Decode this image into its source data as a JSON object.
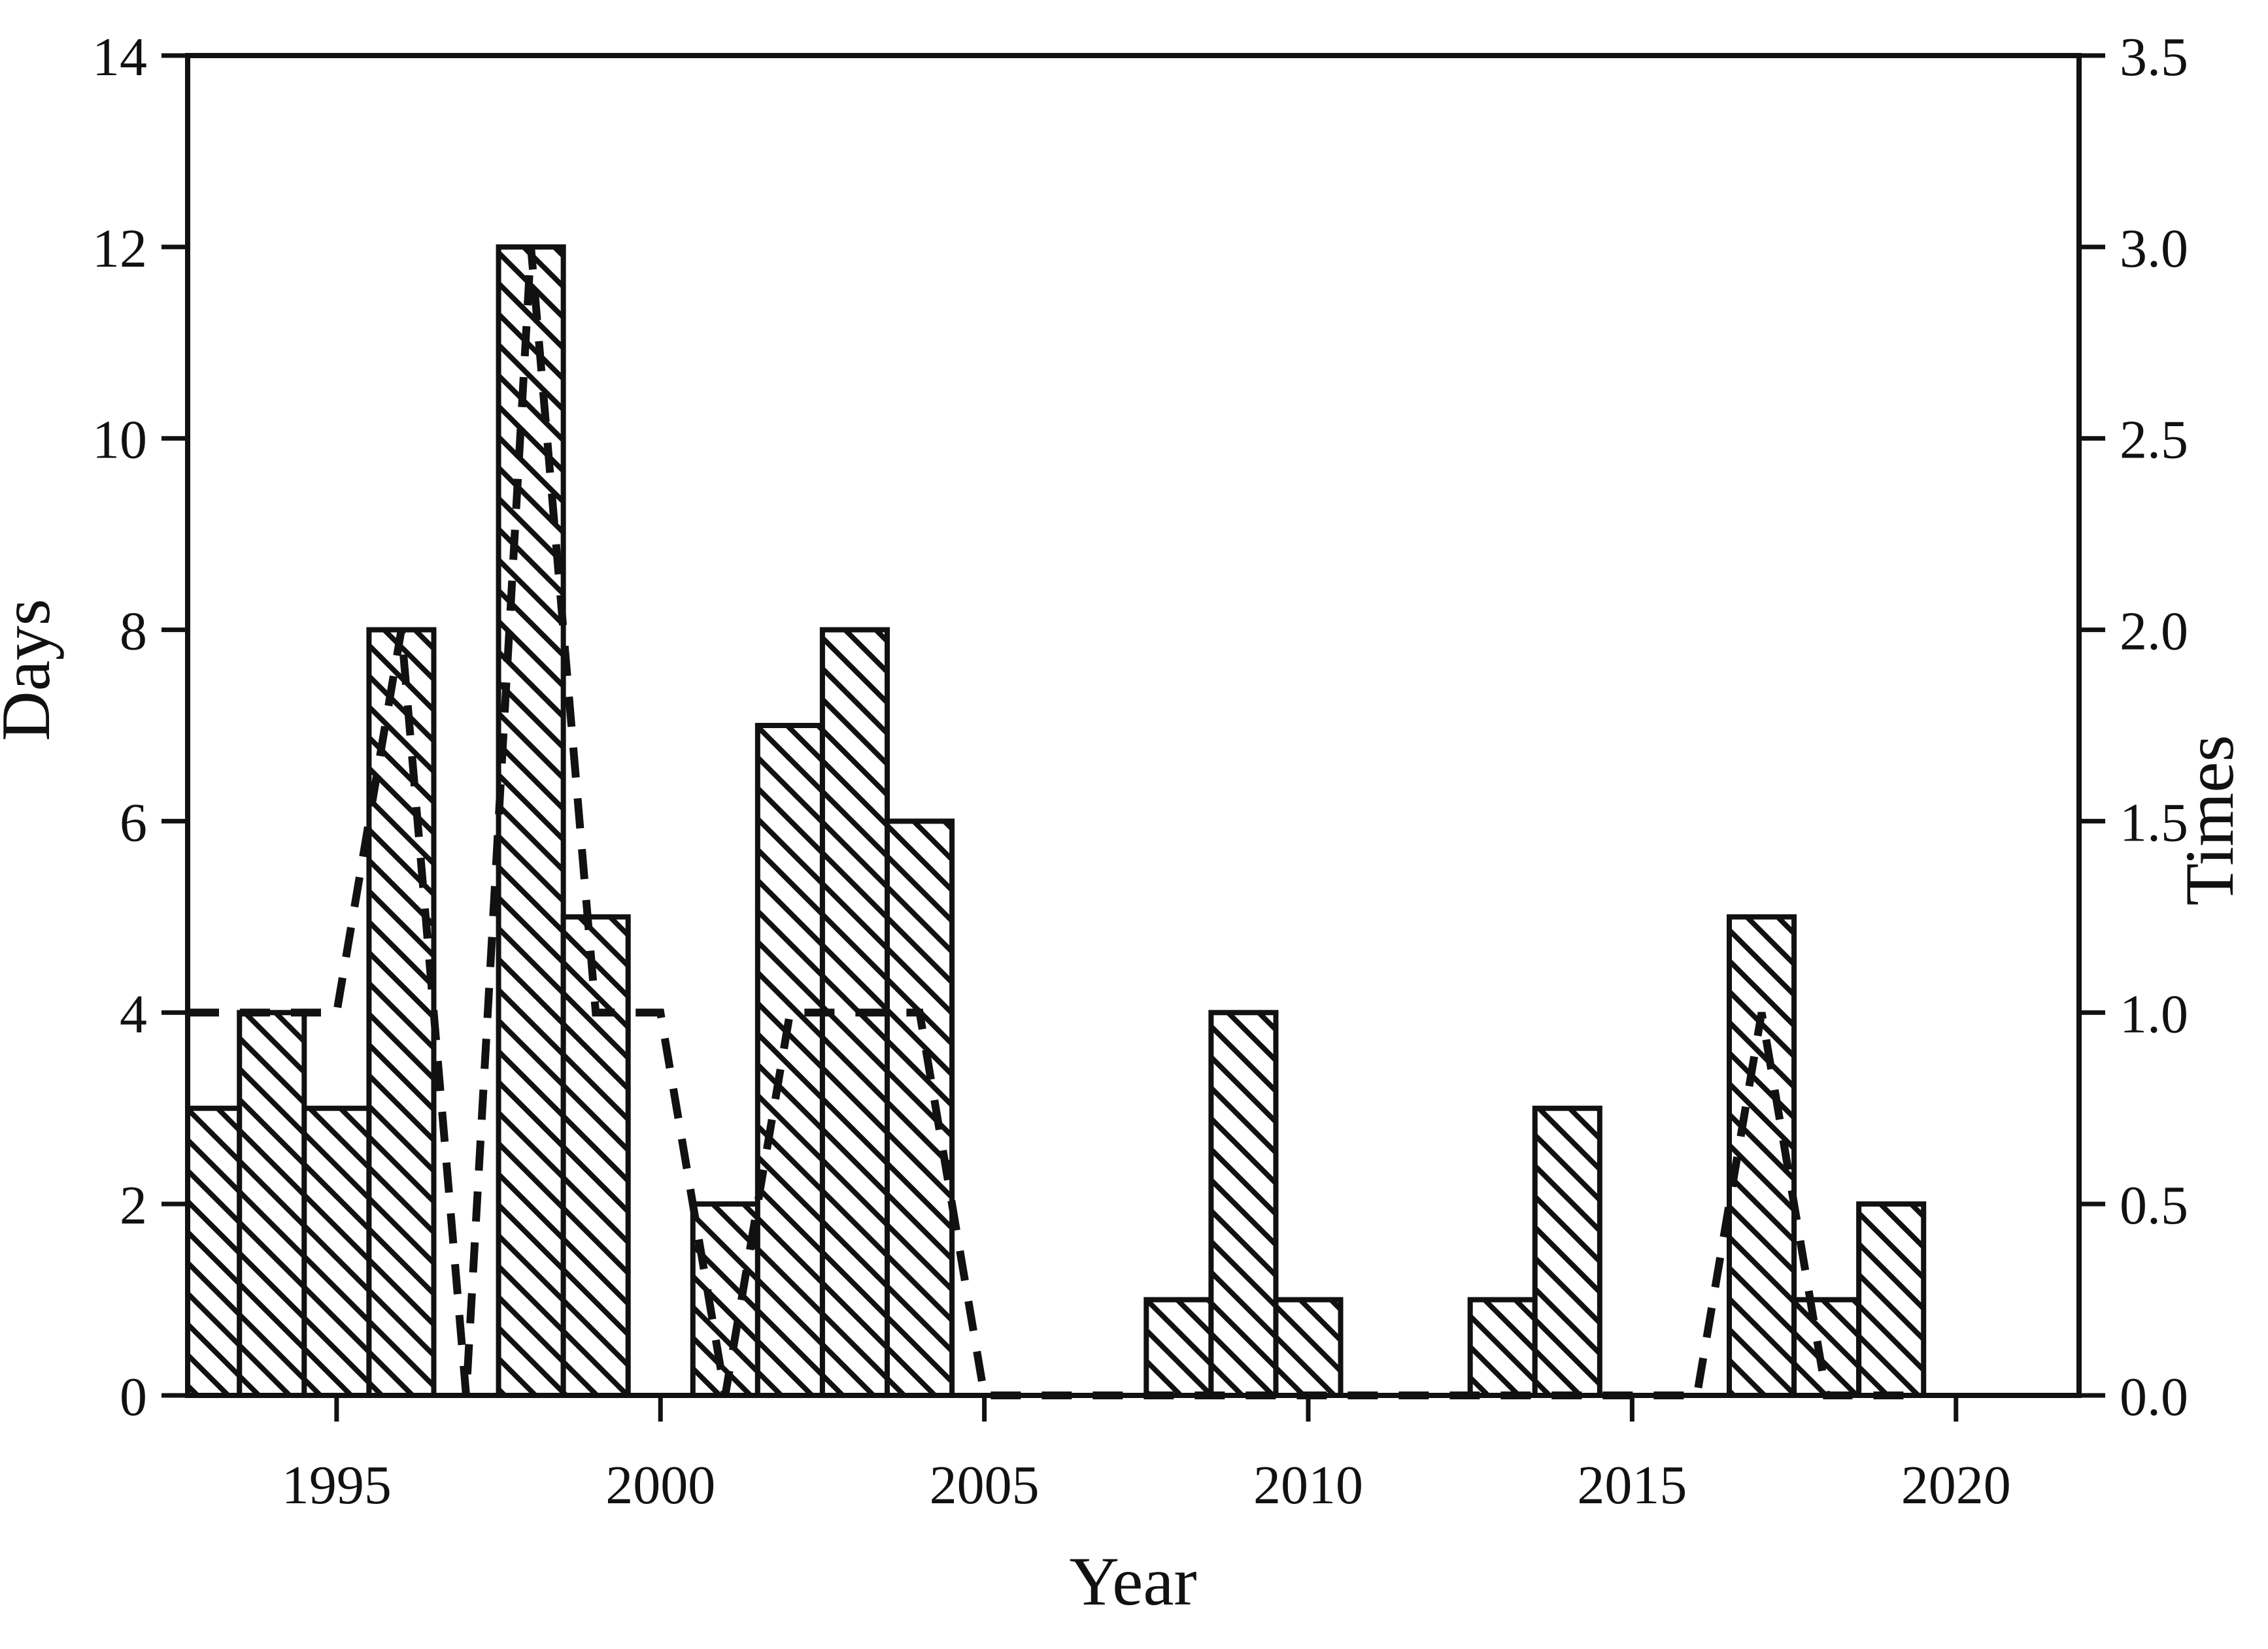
{
  "figure": {
    "xlabel": "Year",
    "ylabel_left": "Days",
    "ylabel_right": "Times",
    "background_color": "#ffffff",
    "ink_color": "#111111"
  },
  "chart_data": {
    "type": "bar",
    "title": "",
    "xlabel": "Year",
    "ylabel_left": "Days",
    "ylabel_right": "Times",
    "grid": false,
    "legend": "none",
    "frame": "full-box",
    "x_range": [
      1992.7,
      2021.9
    ],
    "x_ticks": [
      1995,
      2000,
      2005,
      2010,
      2015,
      2020
    ],
    "y_left": {
      "label": "Days",
      "min": 0,
      "max": 14,
      "ticks": [
        0,
        2,
        4,
        6,
        8,
        10,
        12,
        14
      ]
    },
    "y_right": {
      "label": "Times",
      "min": 0,
      "max": 3.5,
      "tick_labels": [
        "0.0",
        "0.5",
        "1.0",
        "1.5",
        "2.0",
        "2.5",
        "3.0",
        "3.5"
      ]
    },
    "series": [
      {
        "name": "Days",
        "type": "bar",
        "axis": "left",
        "bar_style": "white fill, black border, backslash hatch",
        "categories": [
          1993,
          1994,
          1995,
          1996,
          1997,
          1998,
          1999,
          2000,
          2001,
          2002,
          2003,
          2004,
          2005,
          2006,
          2007,
          2008,
          2009,
          2010,
          2011,
          2012,
          2013,
          2014,
          2015,
          2016,
          2017,
          2018,
          2019
        ],
        "values": [
          3,
          4,
          3,
          8,
          0,
          12,
          5,
          0,
          2,
          7,
          8,
          6,
          0,
          0,
          0,
          1,
          4,
          1,
          0,
          0,
          1,
          3,
          0,
          0,
          5,
          1,
          2
        ]
      },
      {
        "name": "Times",
        "type": "line",
        "axis": "right",
        "line_style": "thick black dashed",
        "points": [
          [
            1992.72,
            1.0
          ],
          [
            1995.0,
            1.0
          ],
          [
            1996.0,
            2.0
          ],
          [
            1997.0,
            0.0
          ],
          [
            1998.0,
            3.0
          ],
          [
            1999.0,
            1.0
          ],
          [
            2000.0,
            1.0
          ],
          [
            2001.0,
            0.0
          ],
          [
            2002.0,
            1.0
          ],
          [
            2004.0,
            1.0
          ],
          [
            2005.0,
            0.0
          ],
          [
            2016.0,
            0.0
          ],
          [
            2017.0,
            1.0
          ],
          [
            2018.0,
            0.0
          ],
          [
            2019.5,
            0.0
          ]
        ]
      }
    ]
  }
}
